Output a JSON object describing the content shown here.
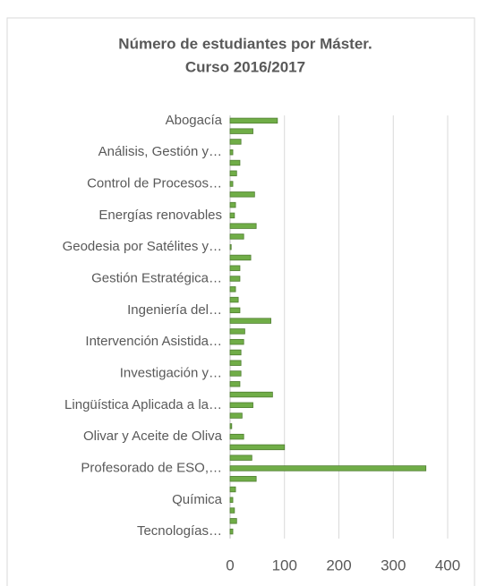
{
  "chart_data": {
    "type": "bar",
    "orientation": "horizontal",
    "title": [
      "Número de estudiantes por Máster.",
      "Curso 2016/2017"
    ],
    "categories": [
      "Abogacía",
      null,
      null,
      "Análisis, Gestión y…",
      null,
      null,
      "Control de Procesos…",
      null,
      null,
      "Energías renovables",
      null,
      null,
      "Geodesia por Satélites y…",
      null,
      null,
      "Gestión Estratégica…",
      null,
      null,
      "Ingeniería del…",
      null,
      null,
      "Intervención Asistida…",
      null,
      null,
      "Investigación y…",
      null,
      null,
      "Lingüística Aplicada a la…",
      null,
      null,
      "Olivar y Aceite de Oliva",
      null,
      null,
      "Profesorado de ESO,…",
      null,
      null,
      "Química",
      null,
      null,
      "Tecnologías…"
    ],
    "values": [
      87,
      42,
      20,
      5,
      18,
      12,
      5,
      45,
      10,
      8,
      48,
      25,
      2,
      38,
      18,
      18,
      10,
      15,
      18,
      75,
      27,
      25,
      20,
      20,
      20,
      18,
      78,
      42,
      22,
      3,
      25,
      100,
      40,
      360,
      48,
      10,
      5,
      8,
      12,
      5
    ],
    "color": "#70ad47",
    "xlim": [
      0,
      400
    ],
    "xticks": [
      0,
      100,
      200,
      300,
      400
    ],
    "grid": true
  }
}
